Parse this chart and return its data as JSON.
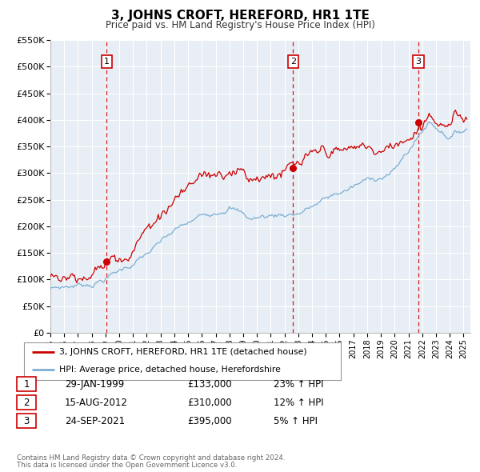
{
  "title": "3, JOHNS CROFT, HEREFORD, HR1 1TE",
  "subtitle": "Price paid vs. HM Land Registry's House Price Index (HPI)",
  "ylim": [
    0,
    550000
  ],
  "yticks": [
    0,
    50000,
    100000,
    150000,
    200000,
    250000,
    300000,
    350000,
    400000,
    450000,
    500000,
    550000
  ],
  "ytick_labels": [
    "£0",
    "£50K",
    "£100K",
    "£150K",
    "£200K",
    "£250K",
    "£300K",
    "£350K",
    "£400K",
    "£450K",
    "£500K",
    "£550K"
  ],
  "xlim_start": 1995.0,
  "xlim_end": 2025.5,
  "xticks": [
    1995,
    1996,
    1997,
    1998,
    1999,
    2000,
    2001,
    2002,
    2003,
    2004,
    2005,
    2006,
    2007,
    2008,
    2009,
    2010,
    2011,
    2012,
    2013,
    2014,
    2015,
    2016,
    2017,
    2018,
    2019,
    2020,
    2021,
    2022,
    2023,
    2024,
    2025
  ],
  "sale_color": "#cc0000",
  "hpi_color": "#7bafd4",
  "vline_color": "#cc0000",
  "background_color": "#e8eef5",
  "grid_color": "#ffffff",
  "sale_label": "3, JOHNS CROFT, HEREFORD, HR1 1TE (detached house)",
  "hpi_label": "HPI: Average price, detached house, Herefordshire",
  "transactions": [
    {
      "num": 1,
      "date": "29-JAN-1999",
      "year": 1999.08,
      "price": 133000
    },
    {
      "num": 2,
      "date": "15-AUG-2012",
      "year": 2012.62,
      "price": 310000
    },
    {
      "num": 3,
      "date": "24-SEP-2021",
      "year": 2021.73,
      "price": 395000
    }
  ],
  "footer1": "Contains HM Land Registry data © Crown copyright and database right 2024.",
  "footer2": "This data is licensed under the Open Government Licence v3.0.",
  "table_rows": [
    [
      "1",
      "29-JAN-1999",
      "£133,000",
      "23% ↑ HPI"
    ],
    [
      "2",
      "15-AUG-2012",
      "£310,000",
      "12% ↑ HPI"
    ],
    [
      "3",
      "24-SEP-2021",
      "£395,000",
      "5% ↑ HPI"
    ]
  ]
}
